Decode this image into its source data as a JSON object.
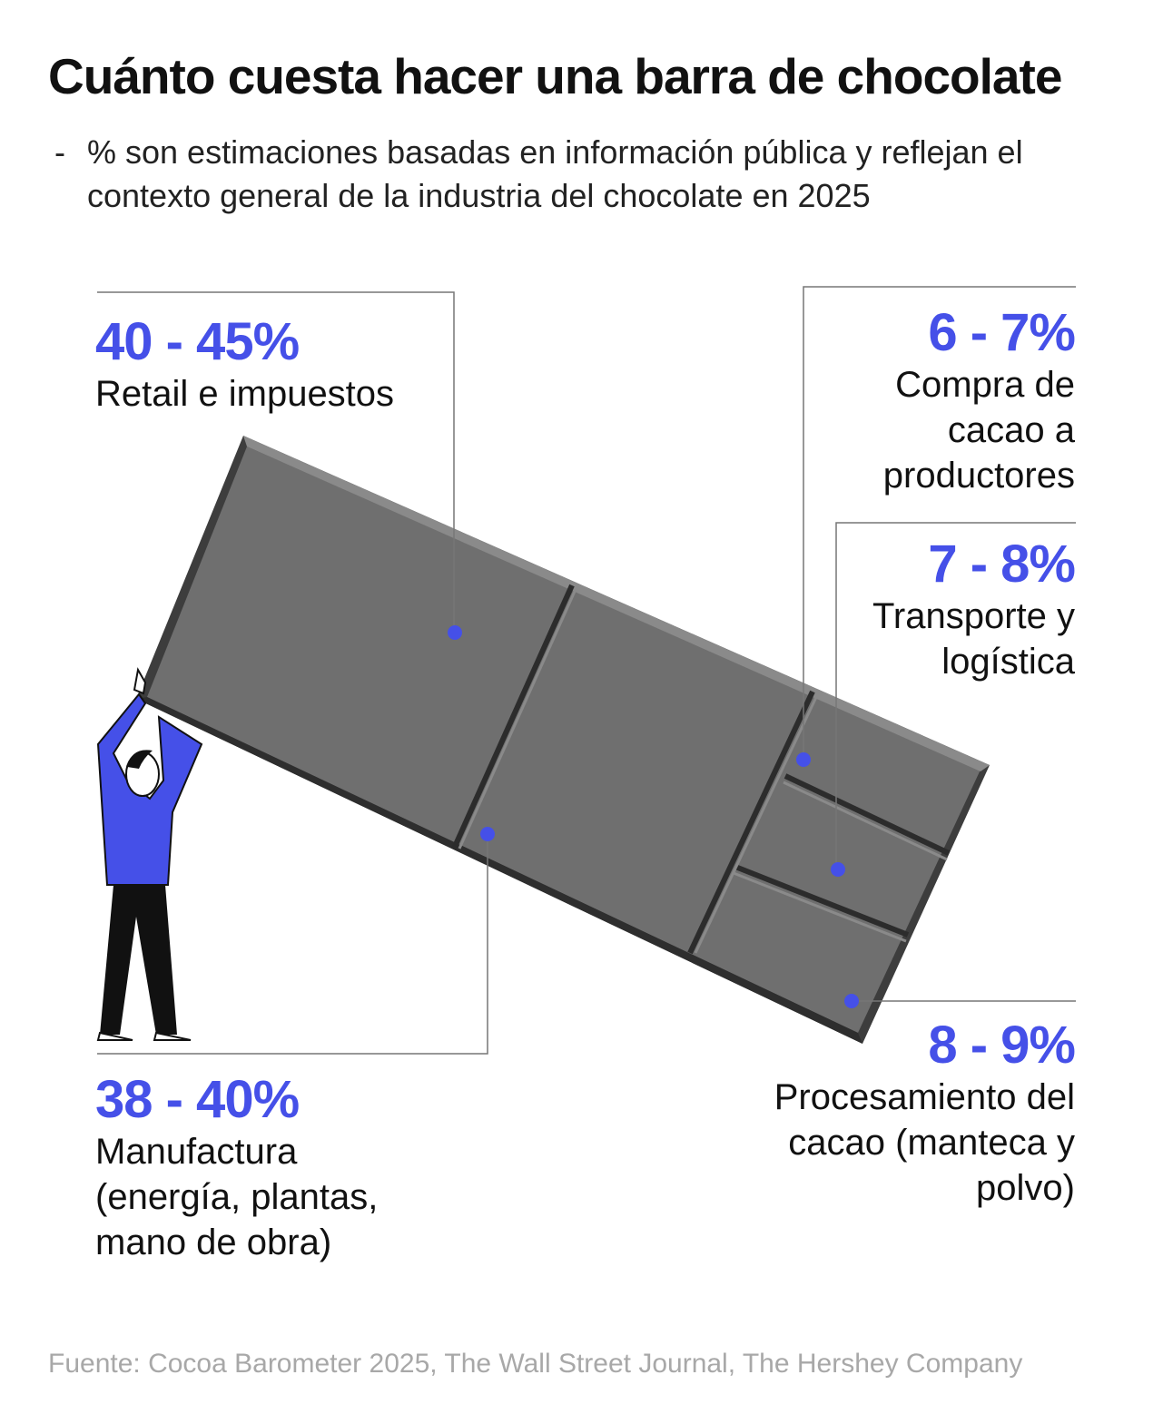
{
  "title": "Cuánto cuesta hacer una barra de chocolate",
  "subtitle": {
    "bullet": "-",
    "text": "% son estimaciones basadas en información pública y reflejan el contexto general de la industria del chocolate en 2025"
  },
  "segments": [
    {
      "id": "retail",
      "range": "40 - 45%",
      "label": "Retail e impuestos"
    },
    {
      "id": "cacao",
      "range": "6 - 7%",
      "label": "Compra de cacao a productores"
    },
    {
      "id": "transporte",
      "range": "7 - 8%",
      "label": "Transporte y logística"
    },
    {
      "id": "procesamiento",
      "range": "8 - 9%",
      "label": "Procesamiento del cacao (manteca y polvo)"
    },
    {
      "id": "manufactura",
      "range": "38 - 40%",
      "label": "Manufactura (energía, plantas, mano de obra)"
    }
  ],
  "source": "Fuente: Cocoa Barometer 2025, The Wall Street Journal, The Hershey Company",
  "colors": {
    "accent": "#4550e8",
    "bar": "#6e6e6e",
    "bar_edge": "#3a3a3a"
  }
}
